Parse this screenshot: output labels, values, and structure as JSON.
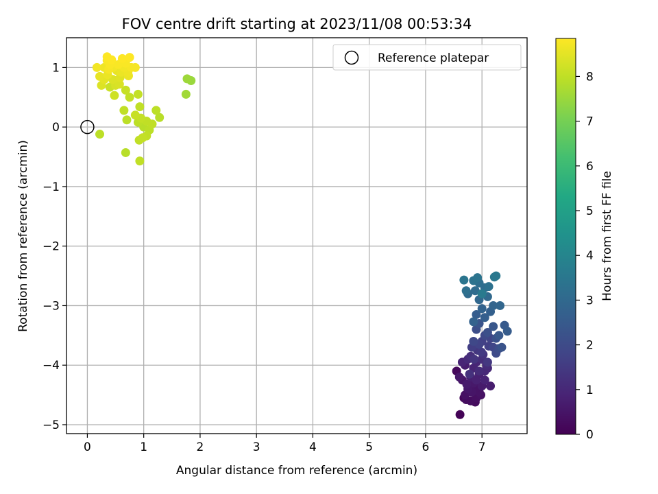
{
  "chart_data": {
    "type": "scatter",
    "title": "FOV centre drift starting at 2023/11/08 00:53:34",
    "xlabel": "Angular distance from reference (arcmin)",
    "ylabel": "Rotation from reference (arcmin)",
    "xlim": [
      -0.37,
      7.8
    ],
    "ylim": [
      -5.15,
      1.5
    ],
    "xticks": [
      0,
      1,
      2,
      3,
      4,
      5,
      6,
      7
    ],
    "yticks": [
      1,
      0,
      -1,
      -2,
      -3,
      -4,
      -5
    ],
    "xtick_labels": [
      "0",
      "1",
      "2",
      "3",
      "4",
      "5",
      "6",
      "7"
    ],
    "ytick_labels": [
      "1",
      "0",
      "−1",
      "−2",
      "−3",
      "−4",
      "−5"
    ],
    "grid": true,
    "legend": {
      "placement": "top-right",
      "entries": [
        "Reference platepar"
      ]
    },
    "reference_point": {
      "x": 0,
      "y": 0
    },
    "colorbar": {
      "label": "Hours from first FF file",
      "colormap": "viridis",
      "range": [
        0,
        8.85
      ],
      "ticks": [
        0,
        1,
        2,
        3,
        4,
        5,
        6,
        7,
        8
      ],
      "tick_labels": [
        "0",
        "1",
        "2",
        "3",
        "4",
        "5",
        "6",
        "7",
        "8"
      ]
    },
    "series": [
      {
        "points": [
          [
            6.61,
            -4.83,
            0.05
          ],
          [
            6.55,
            -4.1,
            0.2
          ],
          [
            6.8,
            -4.6,
            0.3
          ],
          [
            6.9,
            -4.55,
            0.35
          ],
          [
            6.7,
            -4.5,
            0.4
          ],
          [
            6.95,
            -4.45,
            0.45
          ],
          [
            6.65,
            -4.25,
            0.5
          ],
          [
            6.75,
            -4.4,
            0.55
          ],
          [
            6.85,
            -4.3,
            0.6
          ],
          [
            7.0,
            -4.35,
            0.65
          ],
          [
            6.7,
            -4.0,
            0.7
          ],
          [
            6.8,
            -4.2,
            0.75
          ],
          [
            6.95,
            -4.15,
            0.8
          ],
          [
            7.05,
            -4.25,
            0.85
          ],
          [
            6.85,
            -4.05,
            0.9
          ],
          [
            6.9,
            -3.95,
            0.95
          ],
          [
            7.1,
            -4.05,
            1.0
          ],
          [
            6.75,
            -3.9,
            1.05
          ],
          [
            6.95,
            -4.1,
            1.1
          ],
          [
            7.0,
            -3.9,
            1.15
          ],
          [
            6.88,
            -4.62,
            0.25
          ],
          [
            6.72,
            -4.58,
            0.3
          ],
          [
            7.15,
            -4.35,
            0.7
          ],
          [
            6.65,
            -3.95,
            0.9
          ],
          [
            6.8,
            -3.85,
            1.2
          ],
          [
            7.02,
            -3.82,
            1.3
          ],
          [
            6.92,
            -3.75,
            1.4
          ],
          [
            7.1,
            -3.95,
            1.45
          ],
          [
            6.78,
            -4.15,
            1.25
          ],
          [
            6.82,
            -3.7,
            1.6
          ],
          [
            7.0,
            -3.6,
            1.7
          ],
          [
            6.95,
            -3.65,
            1.75
          ],
          [
            7.15,
            -3.55,
            1.8
          ],
          [
            7.2,
            -3.7,
            1.85
          ],
          [
            6.85,
            -3.6,
            1.9
          ],
          [
            7.05,
            -3.5,
            1.95
          ],
          [
            7.25,
            -3.8,
            2.0
          ],
          [
            7.3,
            -3.72,
            2.05
          ],
          [
            6.9,
            -3.4,
            2.1
          ],
          [
            7.1,
            -3.45,
            2.15
          ],
          [
            7.25,
            -3.55,
            2.2
          ],
          [
            7.35,
            -3.7,
            2.25
          ],
          [
            6.95,
            -3.3,
            2.3
          ],
          [
            7.2,
            -3.35,
            2.4
          ],
          [
            7.3,
            -3.5,
            2.45
          ],
          [
            7.4,
            -3.33,
            2.5
          ],
          [
            7.45,
            -3.43,
            2.55
          ],
          [
            6.9,
            -3.15,
            2.6
          ],
          [
            7.05,
            -3.2,
            2.65
          ],
          [
            7.15,
            -3.1,
            2.7
          ],
          [
            6.85,
            -3.27,
            2.75
          ],
          [
            7.0,
            -3.05,
            2.8
          ],
          [
            7.2,
            -3.0,
            2.85
          ],
          [
            7.32,
            -3.0,
            2.9
          ],
          [
            6.95,
            -2.9,
            2.95
          ],
          [
            7.1,
            -2.85,
            3.0
          ],
          [
            6.75,
            -2.8,
            3.05
          ],
          [
            6.88,
            -2.75,
            3.1
          ],
          [
            7.05,
            -2.7,
            3.15
          ],
          [
            6.95,
            -2.62,
            3.2
          ],
          [
            6.72,
            -2.75,
            3.25
          ],
          [
            7.12,
            -2.68,
            3.3
          ],
          [
            6.85,
            -2.58,
            3.35
          ],
          [
            6.92,
            -2.53,
            3.4
          ],
          [
            6.68,
            -2.57,
            3.45
          ],
          [
            7.22,
            -2.52,
            3.5
          ],
          [
            7.25,
            -2.5,
            3.55
          ],
          [
            7.0,
            -2.8,
            3.6
          ],
          [
            6.68,
            -4.55,
            0.15
          ],
          [
            6.98,
            -4.5,
            0.4
          ],
          [
            7.05,
            -4.1,
            1.0
          ],
          [
            6.6,
            -4.2,
            0.6
          ],
          [
            6.82,
            -4.45,
            0.5
          ],
          [
            6.9,
            -4.25,
            0.8
          ],
          [
            6.73,
            -4.32,
            0.65
          ],
          [
            7.08,
            -4.0,
            1.1
          ],
          [
            6.99,
            -3.78,
            1.5
          ],
          [
            6.86,
            -3.9,
            1.35
          ],
          [
            7.12,
            -3.68,
            1.65
          ],
          [
            6.9,
            -4.38,
            0.45
          ],
          [
            0.22,
            -0.12,
            7.95
          ],
          [
            0.93,
            -0.57,
            8.0
          ],
          [
            0.68,
            -0.43,
            7.9
          ],
          [
            0.92,
            -0.22,
            8.0
          ],
          [
            0.98,
            -0.18,
            8.05
          ],
          [
            1.05,
            -0.15,
            8.0
          ],
          [
            1.1,
            -0.05,
            7.95
          ],
          [
            1.15,
            0.05,
            8.0
          ],
          [
            1.0,
            0.0,
            7.9
          ],
          [
            0.9,
            0.08,
            7.95
          ],
          [
            1.05,
            0.1,
            8.0
          ],
          [
            0.95,
            0.15,
            8.05
          ],
          [
            0.85,
            0.2,
            8.1
          ],
          [
            1.22,
            0.28,
            7.95
          ],
          [
            1.28,
            0.16,
            7.9
          ],
          [
            0.7,
            0.12,
            7.95
          ],
          [
            0.65,
            0.28,
            8.0
          ],
          [
            0.93,
            0.34,
            8.0
          ],
          [
            0.75,
            0.5,
            8.05
          ],
          [
            0.9,
            0.55,
            8.05
          ],
          [
            0.68,
            0.62,
            8.1
          ],
          [
            0.48,
            0.53,
            8.2
          ],
          [
            1.75,
            0.55,
            7.6
          ],
          [
            1.77,
            0.81,
            7.55
          ],
          [
            1.84,
            0.78,
            7.5
          ],
          [
            0.4,
            0.67,
            8.15
          ],
          [
            0.5,
            0.7,
            8.3
          ],
          [
            0.57,
            0.72,
            8.35
          ],
          [
            0.45,
            0.8,
            8.4
          ],
          [
            0.58,
            0.83,
            8.45
          ],
          [
            0.25,
            0.7,
            8.4
          ],
          [
            0.3,
            0.8,
            8.5
          ],
          [
            0.22,
            0.85,
            8.55
          ],
          [
            0.36,
            0.88,
            8.6
          ],
          [
            0.6,
            0.92,
            8.6
          ],
          [
            0.72,
            0.92,
            8.65
          ],
          [
            0.65,
            1.0,
            8.7
          ],
          [
            0.46,
            1.0,
            8.7
          ],
          [
            0.78,
            1.0,
            8.75
          ],
          [
            0.85,
            1.0,
            8.75
          ],
          [
            0.17,
            1.0,
            8.7
          ],
          [
            0.3,
            1.0,
            8.65
          ],
          [
            0.4,
            1.05,
            8.8
          ],
          [
            0.55,
            1.05,
            8.8
          ],
          [
            0.35,
            1.12,
            8.8
          ],
          [
            0.43,
            1.13,
            8.85
          ],
          [
            0.62,
            1.15,
            8.85
          ],
          [
            0.75,
            1.17,
            8.85
          ],
          [
            0.35,
            1.18,
            8.85
          ],
          [
            0.73,
            0.86,
            8.6
          ],
          [
            0.52,
            0.95,
            8.55
          ],
          [
            0.68,
            1.07,
            8.8
          ],
          [
            0.38,
            0.97,
            8.75
          ]
        ]
      }
    ]
  }
}
